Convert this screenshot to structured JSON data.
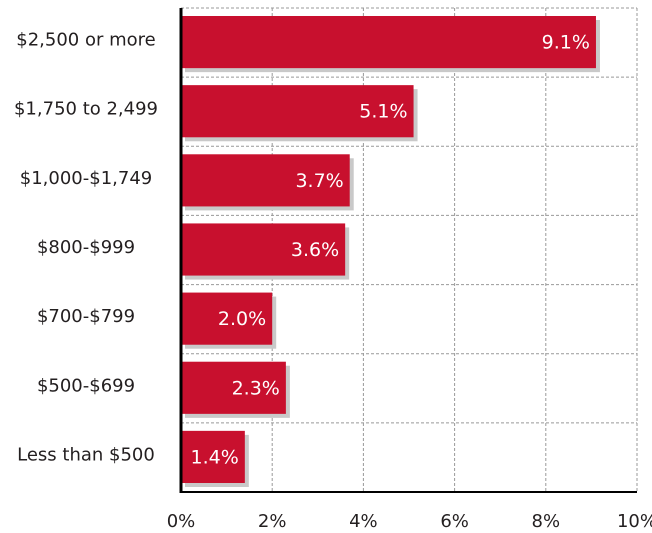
{
  "chart_data": {
    "type": "hbar",
    "categories": [
      "$2,500 or more",
      "$1,750 to 2,499",
      "$1,000-$1,749",
      "$800-$999",
      "$700-$799",
      "$500-$699",
      "Less than $500"
    ],
    "values": [
      9.1,
      5.1,
      3.7,
      3.6,
      2.0,
      2.3,
      1.4
    ],
    "value_labels": [
      "9.1%",
      "5.1%",
      "3.7%",
      "3.6%",
      "2.0%",
      "2.3%",
      "1.4%"
    ],
    "color": "#c8102e",
    "xlim": [
      0,
      10
    ],
    "xticks": [
      {
        "value": 0,
        "label": "0%"
      },
      {
        "value": 2,
        "label": "2%"
      },
      {
        "value": 4,
        "label": "4%"
      },
      {
        "value": 6,
        "label": "6%"
      },
      {
        "value": 8,
        "label": "8%"
      },
      {
        "value": 10,
        "label": "10%"
      }
    ],
    "grid": true
  }
}
